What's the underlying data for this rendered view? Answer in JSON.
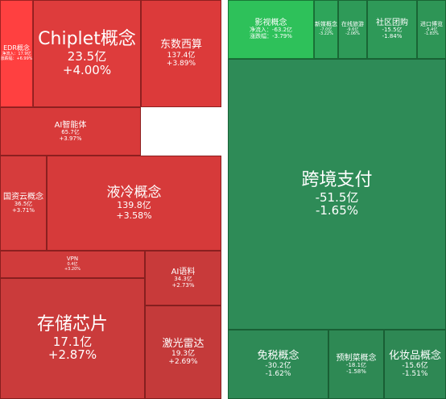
{
  "chart_data": {
    "type": "treemap",
    "tiles": [
      {
        "id": "edr",
        "name": "EDR概念",
        "value_line": "净流入：17.9亿",
        "pct_line": "涨跌幅：+6.99%",
        "color": "#ff4040",
        "size": "edr"
      },
      {
        "id": "chiplet",
        "name": "Chiplet概念",
        "value_line": "23.5亿",
        "pct_line": "+4.00%",
        "color": "#de3c3c",
        "size": "xl"
      },
      {
        "id": "dongshu",
        "name": "东数西算",
        "value_line": "137.4亿",
        "pct_line": "+3.89%",
        "color": "#dc3a3a",
        "size": "m"
      },
      {
        "id": "ai-zhineng",
        "name": "AI智能体",
        "value_line": "65.7亿",
        "pct_line": "+3.97%",
        "color": "#d83a3a",
        "size": "s"
      },
      {
        "id": "guozi",
        "name": "国资云概念",
        "value_line": "36.5亿",
        "pct_line": "+3.71%",
        "color": "#d63c3c",
        "size": "s"
      },
      {
        "id": "yeleng",
        "name": "液冷概念",
        "value_line": "139.8亿",
        "pct_line": "+3.58%",
        "color": "#d63a3a",
        "size": "l"
      },
      {
        "id": "vpn",
        "name": "VPN",
        "value_line": "0.4亿",
        "pct_line": "+3.20%",
        "color": "#d03b3b",
        "size": "xs"
      },
      {
        "id": "ai-yuliao",
        "name": "AI语料",
        "value_line": "34.3亿",
        "pct_line": "+2.73%",
        "color": "#c83a3a",
        "size": "s"
      },
      {
        "id": "cunchu",
        "name": "存储芯片",
        "value_line": "17.1亿",
        "pct_line": "+2.87%",
        "color": "#ca3b3b",
        "size": "xl"
      },
      {
        "id": "jiguang",
        "name": "激光雷达",
        "value_line": "19.3亿",
        "pct_line": "+2.69%",
        "color": "#c43a3a",
        "size": "m"
      },
      {
        "id": "yingshi",
        "name": "影视概念",
        "value_line": "净流入：-63.2亿",
        "pct_line": "涨跌幅：-3.79%",
        "color": "#2ec15a",
        "size": "s"
      },
      {
        "id": "xinmei",
        "name": "新媒概念",
        "value_line": "-7.0亿",
        "pct_line": "-3.22%",
        "color": "#2ea55a",
        "size": "xs"
      },
      {
        "id": "zaixian",
        "name": "在线旅游",
        "value_line": "-9.6亿",
        "pct_line": "-2.06%",
        "color": "#2e9a58",
        "size": "xs"
      },
      {
        "id": "shequ",
        "name": "社区团购",
        "value_line": "-15.5亿",
        "pct_line": "-1.84%",
        "color": "#2e9958",
        "size": "s"
      },
      {
        "id": "jinkou",
        "name": "进口博览",
        "value_line": "-5.4亿",
        "pct_line": "-1.83%",
        "color": "#2e9556",
        "size": "xs"
      },
      {
        "id": "kuajing",
        "name": "跨境支付",
        "value_line": "-51.5亿",
        "pct_line": "-1.65%",
        "color": "#2e8b57",
        "size": "xl"
      },
      {
        "id": "mianshui",
        "name": "免税概念",
        "value_line": "-30.2亿",
        "pct_line": "-1.62%",
        "color": "#2e8a56",
        "size": "m"
      },
      {
        "id": "yuzhi",
        "name": "预制菜概念",
        "value_line": "-18.1亿",
        "pct_line": "-1.58%",
        "color": "#2e8954",
        "size": "s"
      },
      {
        "id": "huazhuang",
        "name": "化妆品概念",
        "value_line": "-15.6亿",
        "pct_line": "-1.51%",
        "color": "#2e8854",
        "size": "m"
      }
    ]
  }
}
